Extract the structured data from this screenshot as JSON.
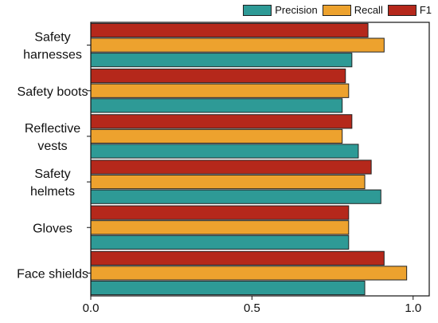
{
  "chart_data": {
    "type": "bar",
    "orientation": "horizontal",
    "categories": [
      [
        "Safety",
        "harnesses"
      ],
      [
        "Safety boots"
      ],
      [
        "Reflective",
        "vests"
      ],
      [
        "Safety",
        "helmets"
      ],
      [
        "Gloves"
      ],
      [
        "Face shields"
      ]
    ],
    "series": [
      {
        "name": "Precision",
        "color": "#2e9a96",
        "values": [
          0.81,
          0.78,
          0.83,
          0.9,
          0.8,
          0.85
        ]
      },
      {
        "name": "Recall",
        "color": "#eda22e",
        "values": [
          0.91,
          0.8,
          0.78,
          0.85,
          0.8,
          0.98
        ]
      },
      {
        "name": "F1",
        "color": "#b5281b",
        "values": [
          0.86,
          0.79,
          0.81,
          0.87,
          0.8,
          0.91
        ]
      }
    ],
    "xlim": [
      0,
      1.05
    ],
    "xticks": [
      0.0,
      0.5,
      1.0
    ],
    "xtick_labels": [
      "0.0",
      "0.5",
      "1.0"
    ],
    "title": "",
    "xlabel": "",
    "ylabel": "",
    "grid": false,
    "legend_position": "top-right"
  }
}
